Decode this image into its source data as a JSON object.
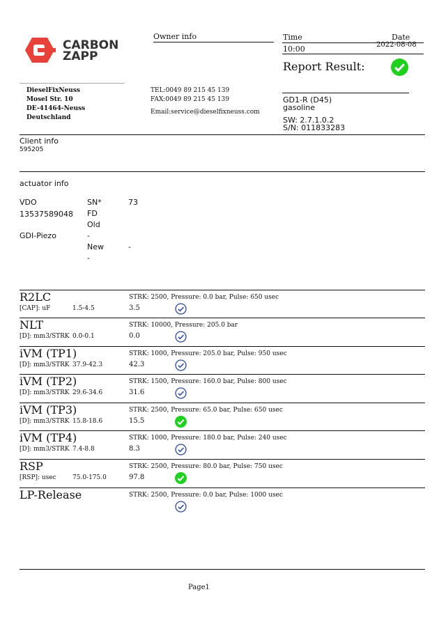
{
  "logo": {
    "line1": "CARBON",
    "line2": "ZAPP",
    "color": "#e8413a"
  },
  "owner": {
    "title": "Owner info",
    "name": "DieselFixNeuss",
    "street": "Mosel Str. 10",
    "city": "DE-41464-Neuss",
    "country": "Deutschland",
    "tel": "TEL:0049 89 215 45 139",
    "fax": "FAX:0049 89 215 45 139",
    "email": "Email:service@dieselfixneuss.com"
  },
  "report": {
    "time_label": "Time",
    "date_label": "Date",
    "time": "10:00",
    "date": "2022-08-08",
    "result_label": "Report Result:",
    "result_icon": "check-circle-green"
  },
  "device": {
    "model": "GD1-R (D45)",
    "fuel": "gasoline",
    "sw": "SW: 2.7.1.0.2",
    "sn": "S/N: 011833283"
  },
  "client": {
    "title": "Client info",
    "id": "595205"
  },
  "actuator": {
    "title": "actuator info",
    "brand": "VDO",
    "number": "13537589048",
    "type": "GDI-Piezo",
    "sn_label": "SN*",
    "sn_value": "73",
    "fd": "FD",
    "old": "Old",
    "dash1": "-",
    "new": "New",
    "dash2": "-",
    "new_value": "-"
  },
  "tests": [
    {
      "name": "R2LC",
      "unit": "[CAP]: uF",
      "range": "1.5-4.5",
      "value": "3.5",
      "cond": "STRK: 2500, Pressure: 0.0 bar, Pulse: 650 usec",
      "status": "ok"
    },
    {
      "name": "NLT",
      "unit": "[D]: mm3/STRK",
      "range": "0.0-0.1",
      "value": "0.0",
      "cond": "STRK: 10000, Pressure: 205.0 bar",
      "status": "ok"
    },
    {
      "name": "iVM (TP1)",
      "unit": "[D]: mm3/STRK",
      "range": "37.9-42.3",
      "value": "42.3",
      "cond": "STRK: 1000, Pressure: 205.0 bar, Pulse: 950 usec",
      "status": "ok"
    },
    {
      "name": "iVM (TP2)",
      "unit": "[D]: mm3/STRK",
      "range": "29.6-34.6",
      "value": "31.6",
      "cond": "STRK: 1500, Pressure: 160.0 bar, Pulse: 800 usec",
      "status": "ok"
    },
    {
      "name": "iVM (TP3)",
      "unit": "[D]: mm3/STRK",
      "range": "15.8-18.6",
      "value": "15.5",
      "cond": "STRK: 2500, Pressure: 65.0 bar, Pulse: 650 usec",
      "status": "pass-green"
    },
    {
      "name": "iVM (TP4)",
      "unit": "[D]: mm3/STRK",
      "range": "7.4-8.8",
      "value": "8.3",
      "cond": "STRK: 1000, Pressure: 180.0 bar, Pulse: 240 usec",
      "status": "ok"
    },
    {
      "name": "RSP",
      "unit": "[RSP]: usec",
      "range": "75.0-175.0",
      "value": "97.8",
      "cond": "STRK: 2500, Pressure: 80.0 bar, Pulse: 750 usec",
      "status": "pass-green"
    },
    {
      "name": "LP-Release",
      "unit": "",
      "range": "",
      "value": "",
      "cond": "STRK: 2500, Pressure: 0.0 bar, Pulse: 1000 usec",
      "status": "ok"
    }
  ],
  "colors": {
    "check_blue": "#3b55a3",
    "check_green": "#1fd11f"
  },
  "footer": {
    "page": "Page1"
  }
}
